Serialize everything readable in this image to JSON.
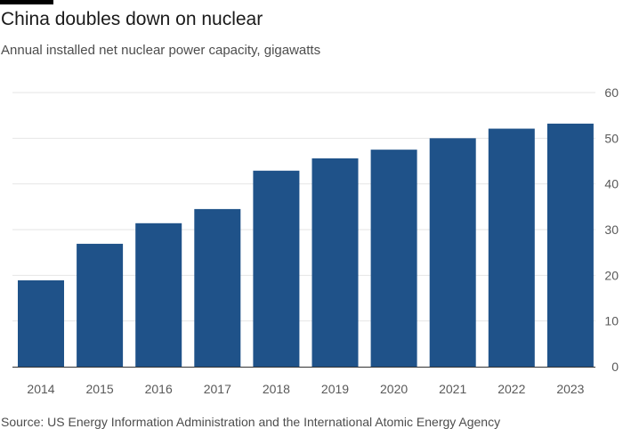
{
  "header": {
    "title": "China doubles down on nuclear",
    "subtitle": "Annual installed net nuclear power capacity, gigawatts"
  },
  "footer": {
    "source": "Source: US Energy Information Administration and the International Atomic Energy Agency"
  },
  "colors": {
    "bar": "#1f5289",
    "grid": "#e6e6e6",
    "axis": "#333333"
  },
  "chart_data": {
    "type": "bar",
    "title": "China doubles down on nuclear",
    "subtitle": "Annual installed net nuclear power capacity, gigawatts",
    "xlabel": "",
    "ylabel": "",
    "categories": [
      "2014",
      "2015",
      "2016",
      "2017",
      "2018",
      "2019",
      "2020",
      "2021",
      "2022",
      "2023"
    ],
    "values": [
      18.9,
      26.9,
      31.4,
      34.5,
      42.9,
      45.6,
      47.5,
      50.0,
      52.1,
      53.2
    ],
    "ylim": [
      0,
      60
    ],
    "yticks": [
      0,
      10,
      20,
      30,
      40,
      50,
      60
    ],
    "grid": true,
    "yaxis_side": "right"
  }
}
